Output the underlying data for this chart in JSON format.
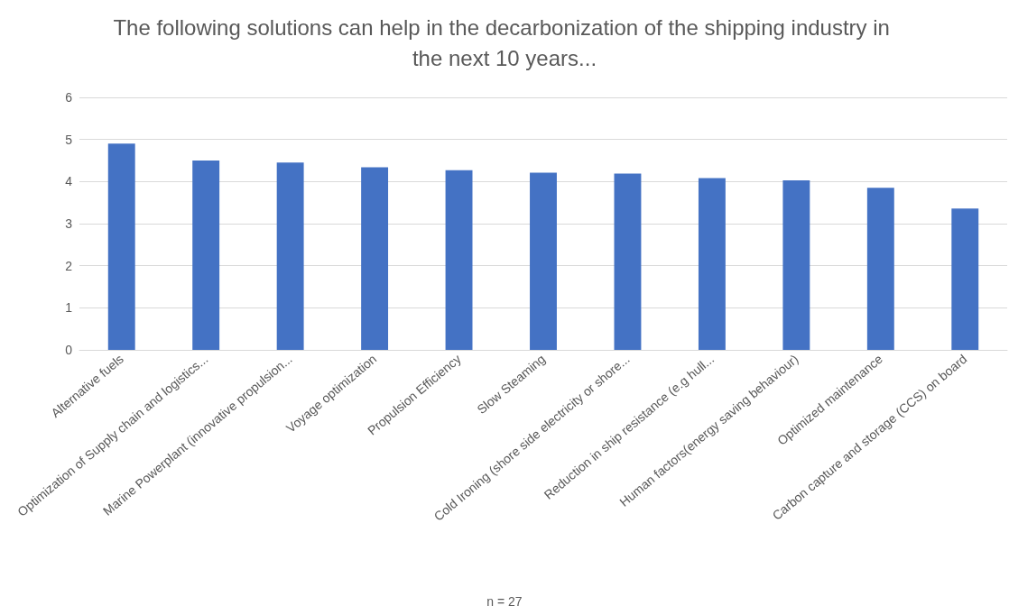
{
  "chart_data": {
    "type": "bar",
    "title": "The following solutions can help in the decarbonization of the shipping industry in the next 10 years...",
    "categories": [
      "Alternative fuels",
      "Optimization of Supply chain and logistics...",
      "Marine Powerplant (innovative propulsion...",
      "Voyage optimization",
      "Propulsion Efficiency",
      "Slow Steaming",
      "Cold Ironing (shore side electricity or shore...",
      "Reduction in ship resistance (e.g hull...",
      "Human factors(energy saving behaviour)",
      "Optimized maintenance",
      "Carbon capture and storage (CCS) on board"
    ],
    "values": [
      4.9,
      4.5,
      4.45,
      4.34,
      4.27,
      4.21,
      4.19,
      4.08,
      4.03,
      3.85,
      3.36
    ],
    "color": "#4472c4",
    "ylim": [
      0,
      6
    ],
    "yticks": [
      0,
      1,
      2,
      3,
      4,
      5,
      6
    ],
    "grid": "y",
    "annotations": [
      "n = 27"
    ]
  }
}
